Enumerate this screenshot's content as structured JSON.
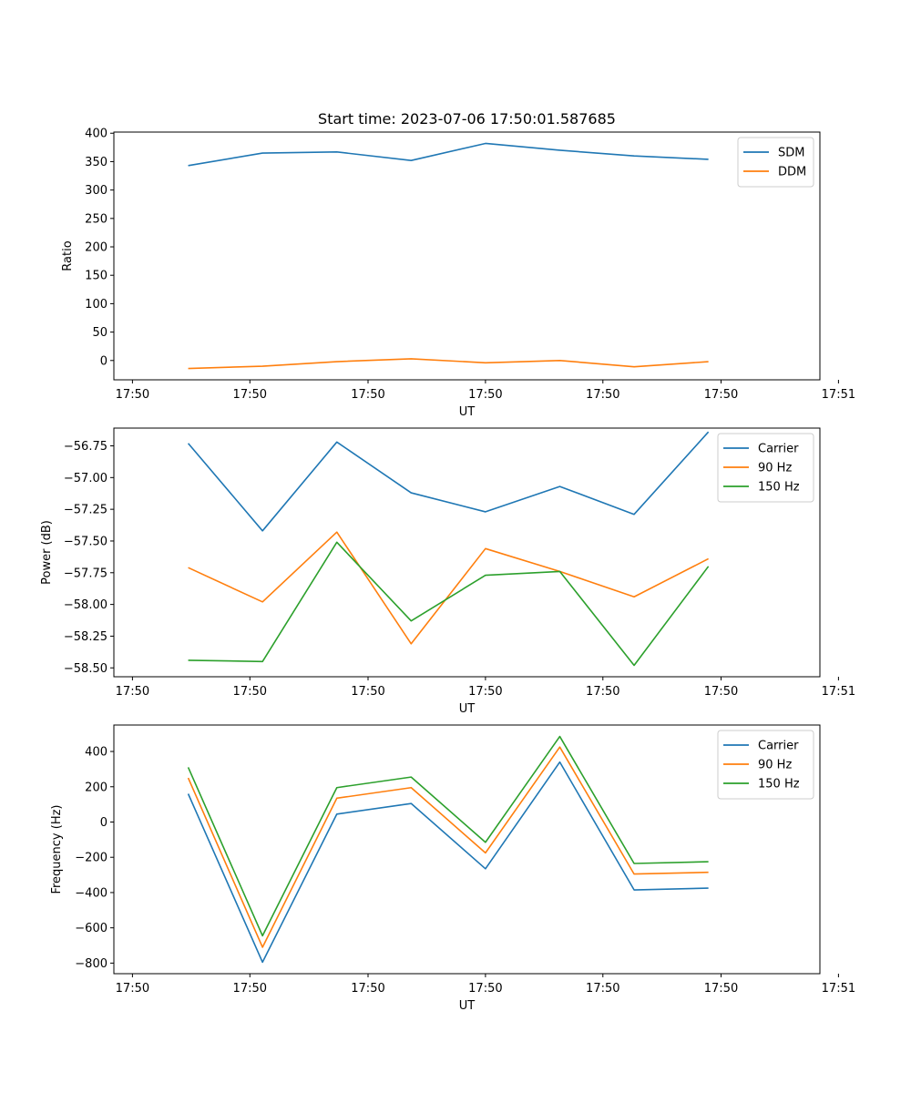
{
  "colors": {
    "blue": "#1f77b4",
    "orange": "#ff7f0e",
    "green": "#2ca02c"
  },
  "chart_data": [
    {
      "type": "line",
      "title": "Start time: 2023-07-06 17:50:01.587685",
      "xlabel": "UT",
      "ylabel": "Ratio",
      "xlim": [
        0,
        9.5
      ],
      "ylim": [
        -34,
        402
      ],
      "x": [
        1,
        2,
        3,
        4,
        5,
        6,
        7,
        8
      ],
      "x_ticks": [
        0.25,
        1.83,
        3.42,
        5.0,
        6.58,
        8.17,
        9.75
      ],
      "x_tick_labels": [
        "17:50",
        "17:50",
        "17:50",
        "17:50",
        "17:50",
        "17:50",
        "17:51"
      ],
      "y_ticks": [
        0,
        50,
        100,
        150,
        200,
        250,
        300,
        350,
        400
      ],
      "y_tick_labels": [
        "0",
        "50",
        "100",
        "150",
        "200",
        "250",
        "300",
        "350",
        "400"
      ],
      "legend_position": "top-right",
      "series": [
        {
          "name": "SDM",
          "color": "#1f77b4",
          "values": [
            343,
            365,
            367,
            352,
            382,
            370,
            360,
            354
          ]
        },
        {
          "name": "DDM",
          "color": "#ff7f0e",
          "values": [
            -14,
            -10,
            -2,
            3,
            -4,
            0,
            -11,
            -2
          ]
        }
      ]
    },
    {
      "type": "line",
      "title": "",
      "xlabel": "UT",
      "ylabel": "Power (dB)",
      "xlim": [
        0,
        9.5
      ],
      "ylim": [
        -58.57,
        -56.61
      ],
      "x": [
        1,
        2,
        3,
        4,
        5,
        6,
        7,
        8
      ],
      "x_ticks": [
        0.25,
        1.83,
        3.42,
        5.0,
        6.58,
        8.17,
        9.75
      ],
      "x_tick_labels": [
        "17:50",
        "17:50",
        "17:50",
        "17:50",
        "17:50",
        "17:50",
        "17:51"
      ],
      "y_ticks": [
        -58.5,
        -58.25,
        -58.0,
        -57.75,
        -57.5,
        -57.25,
        -57.0,
        -56.75
      ],
      "y_tick_labels": [
        "−58.50",
        "−58.25",
        "−58.00",
        "−57.75",
        "−57.50",
        "−57.25",
        "−57.00",
        "−56.75"
      ],
      "legend_position": "top-right",
      "series": [
        {
          "name": "Carrier",
          "color": "#1f77b4",
          "values": [
            -56.73,
            -57.42,
            -56.72,
            -57.12,
            -57.27,
            -57.07,
            -57.29,
            -56.64
          ]
        },
        {
          "name": "90 Hz",
          "color": "#ff7f0e",
          "values": [
            -57.71,
            -57.98,
            -57.43,
            -58.31,
            -57.56,
            -57.74,
            -57.94,
            -57.64
          ]
        },
        {
          "name": "150 Hz",
          "color": "#2ca02c",
          "values": [
            -58.44,
            -58.45,
            -57.51,
            -58.13,
            -57.77,
            -57.74,
            -58.48,
            -57.7
          ]
        }
      ]
    },
    {
      "type": "line",
      "title": "",
      "xlabel": "UT",
      "ylabel": "Frequency (Hz)",
      "xlim": [
        0,
        9.5
      ],
      "ylim": [
        -860,
        550
      ],
      "x": [
        1,
        2,
        3,
        4,
        5,
        6,
        7,
        8
      ],
      "x_ticks": [
        0.25,
        1.83,
        3.42,
        5.0,
        6.58,
        8.17,
        9.75
      ],
      "x_tick_labels": [
        "17:50",
        "17:50",
        "17:50",
        "17:50",
        "17:50",
        "17:50",
        "17:51"
      ],
      "y_ticks": [
        -800,
        -600,
        -400,
        -200,
        0,
        200,
        400
      ],
      "y_tick_labels": [
        "−800",
        "−600",
        "−400",
        "−200",
        "0",
        "200",
        "400"
      ],
      "legend_position": "top-right",
      "series": [
        {
          "name": "Carrier",
          "color": "#1f77b4",
          "values": [
            160,
            -795,
            45,
            105,
            -265,
            340,
            -385,
            -375
          ]
        },
        {
          "name": "90 Hz",
          "color": "#ff7f0e",
          "values": [
            250,
            -710,
            135,
            195,
            -175,
            425,
            -295,
            -285
          ]
        },
        {
          "name": "150 Hz",
          "color": "#2ca02c",
          "values": [
            310,
            -645,
            195,
            255,
            -115,
            485,
            -235,
            -225
          ]
        }
      ]
    }
  ]
}
